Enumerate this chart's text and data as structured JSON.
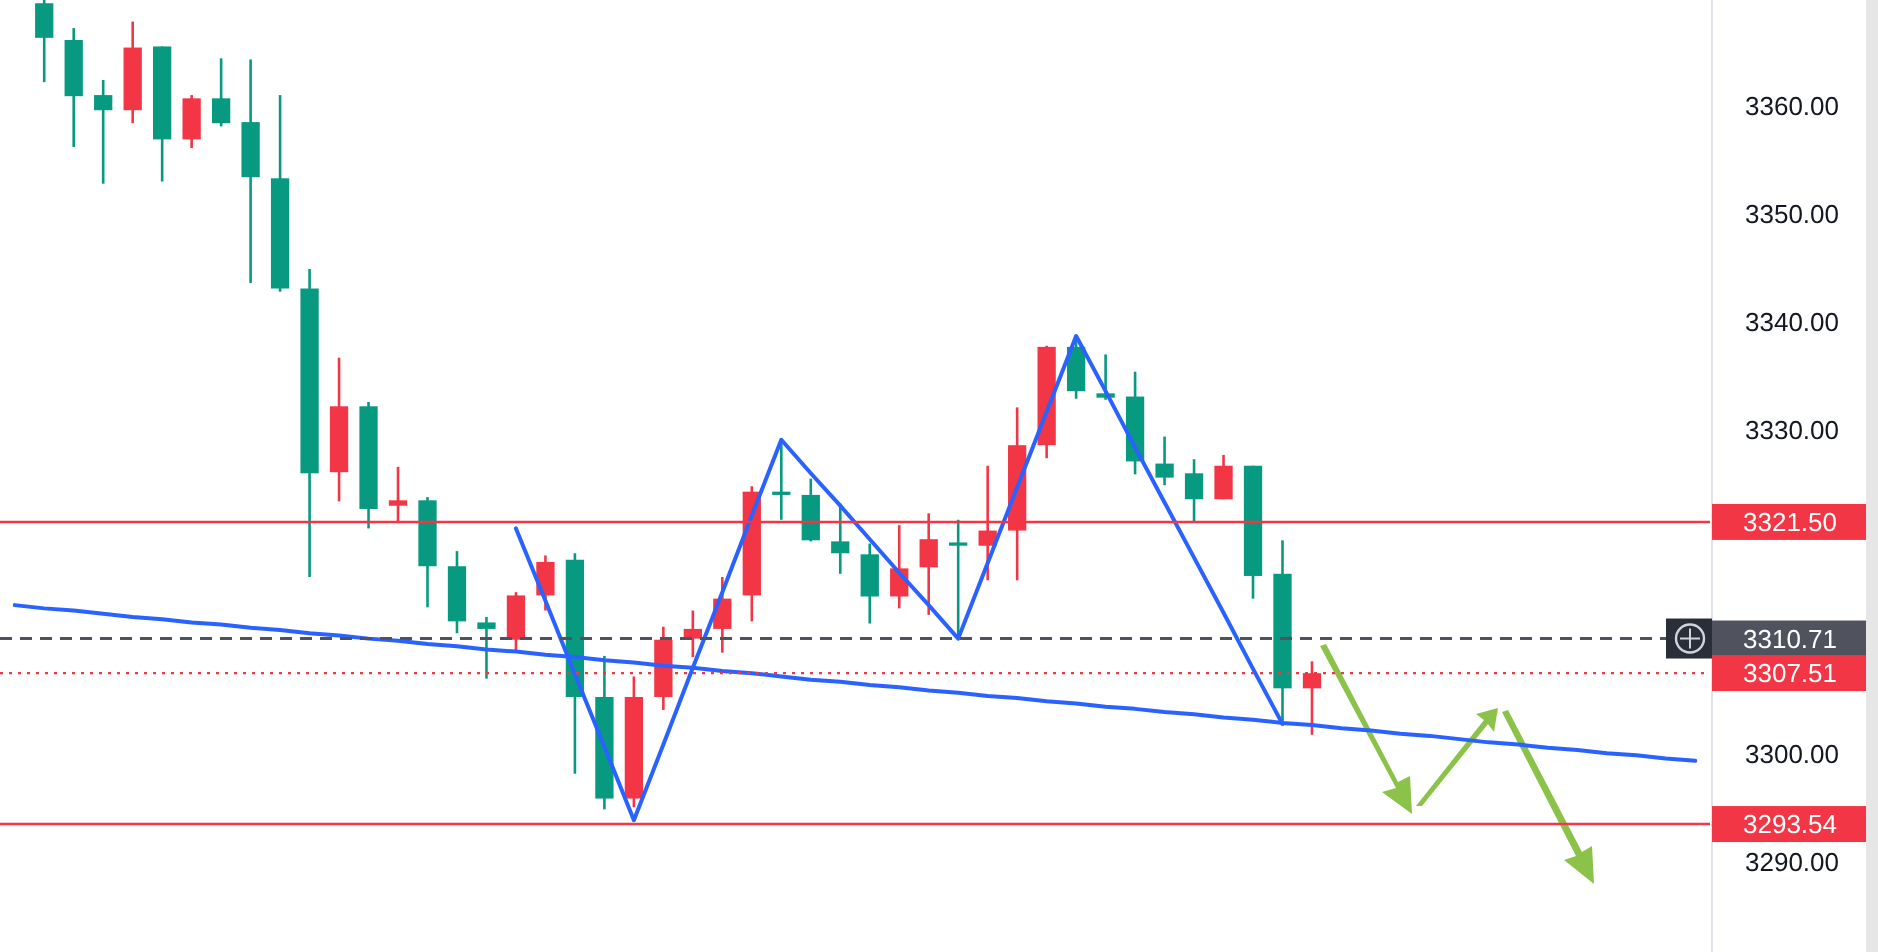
{
  "chart_data": {
    "type": "candlestick",
    "categories": [
      null,
      null,
      null,
      null,
      null,
      null,
      null,
      null,
      null,
      null,
      null,
      null,
      null,
      null,
      null,
      null,
      null,
      null,
      null,
      null,
      null,
      null,
      null,
      null,
      null,
      null,
      null,
      null,
      null,
      null,
      null,
      null,
      null,
      null,
      null,
      null,
      null,
      null,
      null,
      null,
      null,
      null,
      null,
      null,
      null,
      null,
      null,
      null,
      null,
      null,
      null,
      null,
      null,
      null,
      null,
      null,
      null,
      null
    ],
    "ohlc": [
      null,
      [
        3369.5,
        3370,
        3362.2,
        3366.3
      ],
      [
        3366.1,
        3367.2,
        3356.2,
        3360.9
      ],
      [
        3361.0,
        3362.4,
        3352.8,
        3359.6
      ],
      [
        3359.6,
        3367.8,
        3358.4,
        3365.4
      ],
      [
        3365.5,
        3365.5,
        3353.0,
        3356.9
      ],
      [
        3356.9,
        3361.0,
        3356.1,
        3360.7
      ],
      [
        3360.7,
        3364.4,
        3358.1,
        3358.4
      ],
      [
        3358.5,
        3364.3,
        3343.6,
        3353.4
      ],
      [
        3353.3,
        3361.0,
        3342.8,
        3343.1
      ],
      [
        3343.1,
        3344.9,
        3316.4,
        3326.0
      ],
      [
        3326.1,
        3336.7,
        3323.4,
        3332.2
      ],
      [
        3332.2,
        3332.6,
        3320.9,
        3322.7
      ],
      [
        3323.0,
        3326.6,
        3321.4,
        3323.5
      ],
      [
        3323.5,
        3323.8,
        3313.6,
        3317.4
      ],
      [
        3317.4,
        3318.8,
        3311.2,
        3312.3
      ],
      [
        3312.2,
        3312.7,
        3307.0,
        3311.6
      ],
      [
        3310.6,
        3315.0,
        3309.6,
        3314.7
      ],
      [
        3314.7,
        3318.4,
        3313.3,
        3317.8
      ],
      [
        3318.0,
        3318.6,
        3298.2,
        3305.3
      ],
      [
        3305.3,
        3309.1,
        3294.9,
        3295.9
      ],
      [
        3295.9,
        3307.2,
        3295.1,
        3305.3
      ],
      [
        3305.3,
        3311.8,
        3304.1,
        3310.6
      ],
      [
        3310.7,
        3313.3,
        3309.0,
        3311.6
      ],
      [
        3311.6,
        3316.4,
        3309.4,
        3314.4
      ],
      [
        3314.7,
        3324.8,
        3312.3,
        3324.3
      ],
      [
        3324.3,
        3329.1,
        3321.7,
        3324.0
      ],
      [
        3324.0,
        3325.5,
        3319.7,
        3319.8
      ],
      [
        3319.7,
        3323.2,
        3316.7,
        3318.6
      ],
      [
        3318.5,
        3319.5,
        3312.1,
        3314.6
      ],
      [
        3314.6,
        3321.2,
        3313.5,
        3317.2
      ],
      [
        3317.3,
        3322.3,
        3312.9,
        3319.9
      ],
      [
        3319.6,
        3321.7,
        3310.9,
        3319.3
      ],
      [
        3319.3,
        3326.7,
        3316.1,
        3320.7
      ],
      [
        3320.7,
        3332.1,
        3316.1,
        3328.6
      ],
      [
        3328.6,
        3337.8,
        3327.4,
        3337.7
      ],
      [
        3337.7,
        3338.3,
        3332.9,
        3333.6
      ],
      [
        3333.4,
        3337.0,
        3332.8,
        3333.0
      ],
      [
        3333.1,
        3335.4,
        3325.9,
        3327.1
      ],
      [
        3326.9,
        3329.4,
        3324.9,
        3325.6
      ],
      [
        3326.0,
        3327.3,
        3321.5,
        3323.6
      ],
      [
        3323.6,
        3327.7,
        3323.6,
        3326.7
      ],
      [
        3326.7,
        3326.7,
        3314.4,
        3316.5
      ],
      [
        3316.7,
        3319.8,
        3302.8,
        3306.1
      ],
      [
        3306.1,
        3308.6,
        3301.8,
        3307.5
      ],
      null,
      null,
      null,
      null,
      null,
      null,
      null,
      null,
      null,
      null,
      null,
      null,
      null
    ],
    "colors": [
      null,
      "#089981",
      "#089981",
      "#089981",
      "#f23645",
      "#089981",
      "#f23645",
      "#089981",
      "#089981",
      "#089981",
      "#089981",
      "#f23645",
      "#089981",
      "#f23645",
      "#089981",
      "#089981",
      "#089981",
      "#f23645",
      "#f23645",
      "#089981",
      "#089981",
      "#f23645",
      "#f23645",
      "#f23645",
      "#f23645",
      "#f23645",
      "#089981",
      "#089981",
      "#089981",
      "#089981",
      "#f23645",
      "#f23645",
      "#089981",
      "#f23645",
      "#f23645",
      "#f23645",
      "#089981",
      "#089981",
      "#089981",
      "#089981",
      "#089981",
      "#f23645",
      "#089981",
      "#089981",
      "#f23645",
      null,
      null,
      null,
      null,
      null,
      null,
      null,
      null,
      null,
      null,
      null,
      null,
      null
    ],
    "series": [
      {
        "type": "line",
        "color": "#2962ff",
        "values": [
          3313.8,
          3313.5,
          3313.3,
          3313.0,
          3312.7,
          3312.5,
          3312.2,
          3312.0,
          3311.7,
          3311.5,
          3311.2,
          3311.0,
          3310.7,
          3310.5,
          3310.2,
          3310.0,
          3309.7,
          3309.5,
          3309.2,
          3309.0,
          3308.7,
          3308.5,
          3308.2,
          3308.0,
          3307.7,
          3307.5,
          3307.2,
          3306.9,
          3306.7,
          3306.4,
          3306.2,
          3305.9,
          3305.7,
          3305.4,
          3305.2,
          3304.9,
          3304.7,
          3304.4,
          3304.2,
          3303.9,
          3303.7,
          3303.4,
          3303.2,
          3302.9,
          3302.7,
          3302.4,
          3302.2,
          3301.9,
          3301.7,
          3301.4,
          3301.1,
          3300.9,
          3300.6,
          3300.4,
          3300.1,
          3299.9,
          3299.6,
          3299.4
        ]
      },
      {
        "type": "line",
        "color": "#2962ff",
        "values": [
          null,
          null,
          null,
          null,
          null,
          null,
          null,
          null,
          null,
          null,
          null,
          null,
          null,
          null,
          null,
          null,
          null,
          3320.9,
          3314.2,
          3307.4,
          3300.7,
          3293.9,
          3300.9,
          3308.0,
          3315.0,
          3322.1,
          3329.1,
          3326.0,
          3323.0,
          3319.9,
          3316.8,
          3313.8,
          3310.7,
          3317.7,
          3324.7,
          3331.7,
          3338.7,
          3333.6,
          3328.4,
          3323.3,
          3318.2,
          3313.1,
          3307.9,
          3302.8,
          null,
          null,
          null,
          null,
          null,
          null,
          null,
          null,
          null,
          null,
          null,
          null,
          null,
          null
        ]
      }
    ],
    "ylim": [
      3281.7,
      3369.8
    ],
    "yticks": [
      {
        "value": 3290,
        "label": "3290.00"
      },
      {
        "value": 3300,
        "label": "3300.00"
      },
      {
        "value": 3330,
        "label": "3330.00"
      },
      {
        "value": 3340,
        "label": "3340.00"
      },
      {
        "value": 3350,
        "label": "3350.00"
      },
      {
        "value": 3360,
        "label": "3360.00"
      }
    ],
    "tick_labels": "y",
    "grid": false,
    "ref_lines": [
      {
        "axis": "y",
        "value": 3321.5,
        "label": "3321.50",
        "color": "#f23645",
        "line_style": "solid"
      },
      {
        "axis": "y",
        "value": 3310.71,
        "label": "3310.71",
        "color": "#50535e",
        "line_style": "dashed"
      },
      {
        "axis": "y",
        "value": 3307.51,
        "label": "3307.51",
        "color": "#f23645",
        "line_style": "dotted"
      },
      {
        "axis": "y",
        "value": 3293.54,
        "label": "3293.54",
        "color": "#f23645",
        "line_style": "solid"
      }
    ]
  }
}
